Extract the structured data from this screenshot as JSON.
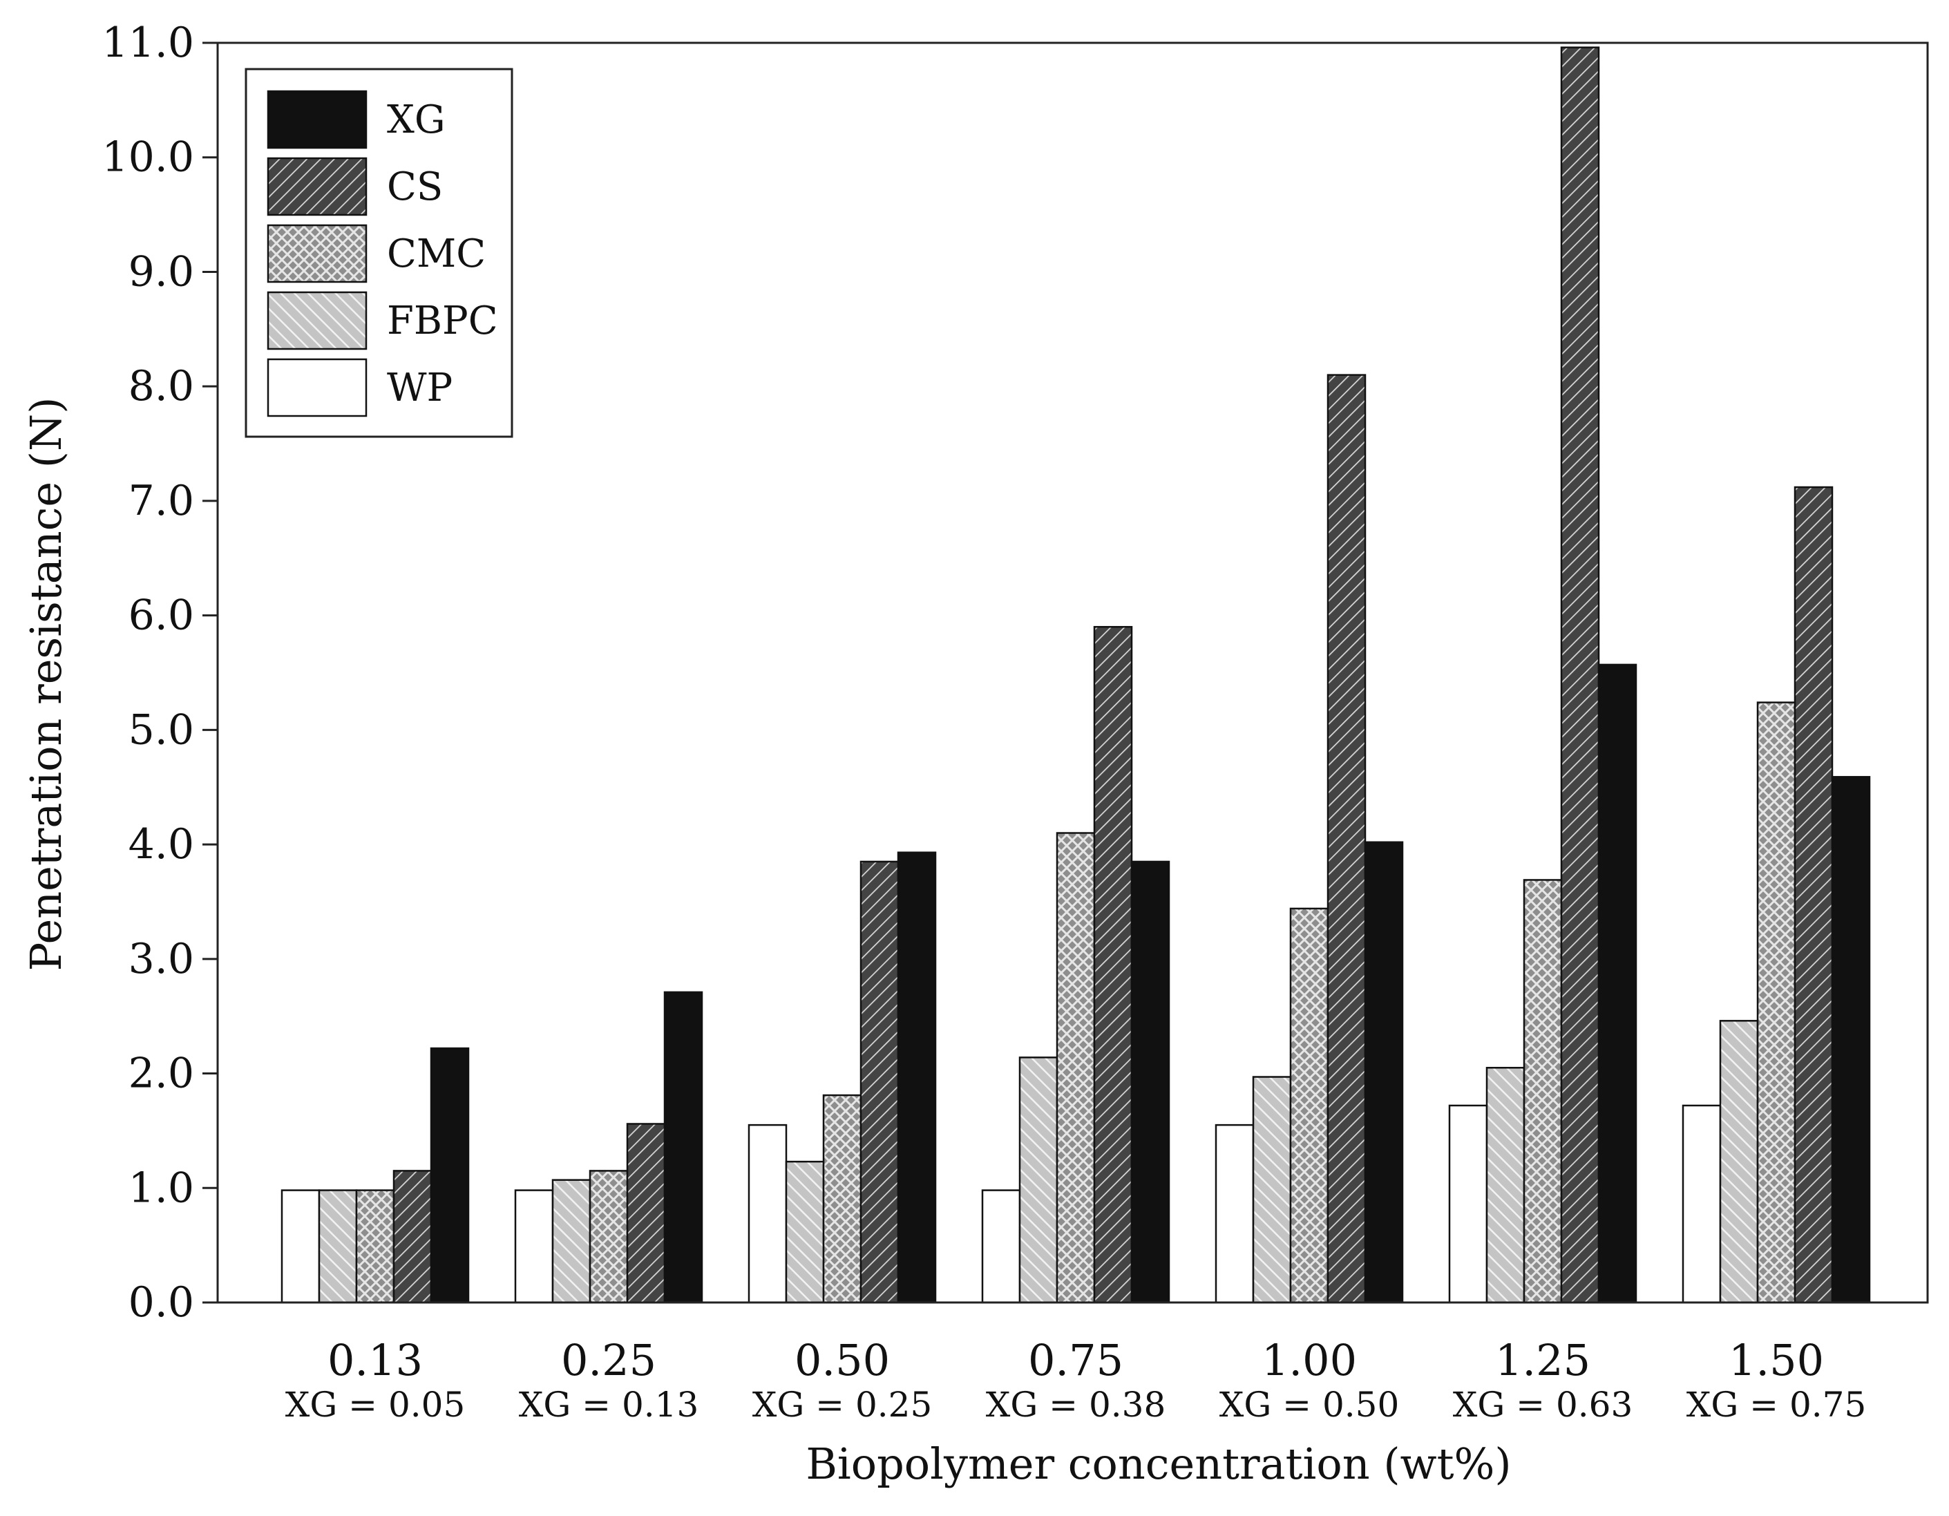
{
  "chart_data": {
    "type": "bar",
    "title": "",
    "xlabel": "Biopolymer concentration (wt%)",
    "ylabel": "Penetration resistance (N)",
    "ylim": [
      0,
      11
    ],
    "yticks": [
      "0.0",
      "1.0",
      "2.0",
      "3.0",
      "4.0",
      "5.0",
      "6.0",
      "7.0",
      "8.0",
      "9.0",
      "10.0",
      "11.0"
    ],
    "categories": [
      "0.13",
      "0.25",
      "0.50",
      "0.75",
      "1.00",
      "1.25",
      "1.50"
    ],
    "subcategories": [
      "XG = 0.05",
      "XG = 0.13",
      "XG = 0.25",
      "XG = 0.38",
      "XG = 0.50",
      "XG = 0.63",
      "XG = 0.75"
    ],
    "legend_position": "top-left",
    "legend_order": [
      "XG",
      "CS",
      "CMC",
      "FBPC",
      "WP"
    ],
    "series": [
      {
        "name": "WP",
        "pattern": "none",
        "fill": "#ffffff",
        "values": [
          0.98,
          0.98,
          1.55,
          0.98,
          1.55,
          1.72,
          1.72
        ]
      },
      {
        "name": "FBPC",
        "pattern": "diagonal-light",
        "fill": "#c8c8c8",
        "values": [
          0.98,
          1.07,
          1.23,
          2.14,
          1.97,
          2.05,
          2.46
        ]
      },
      {
        "name": "CMC",
        "pattern": "crosshatch",
        "fill": "#9a9a9a",
        "values": [
          0.98,
          1.15,
          1.81,
          4.1,
          3.44,
          3.69,
          5.24
        ]
      },
      {
        "name": "CS",
        "pattern": "diagonal-dark",
        "fill": "#4a4a4a",
        "values": [
          1.15,
          1.56,
          3.85,
          5.9,
          8.1,
          10.96,
          7.12
        ]
      },
      {
        "name": "XG",
        "pattern": "solid",
        "fill": "#111111",
        "values": [
          2.22,
          2.71,
          3.93,
          3.85,
          4.02,
          5.57,
          4.59
        ]
      }
    ]
  }
}
